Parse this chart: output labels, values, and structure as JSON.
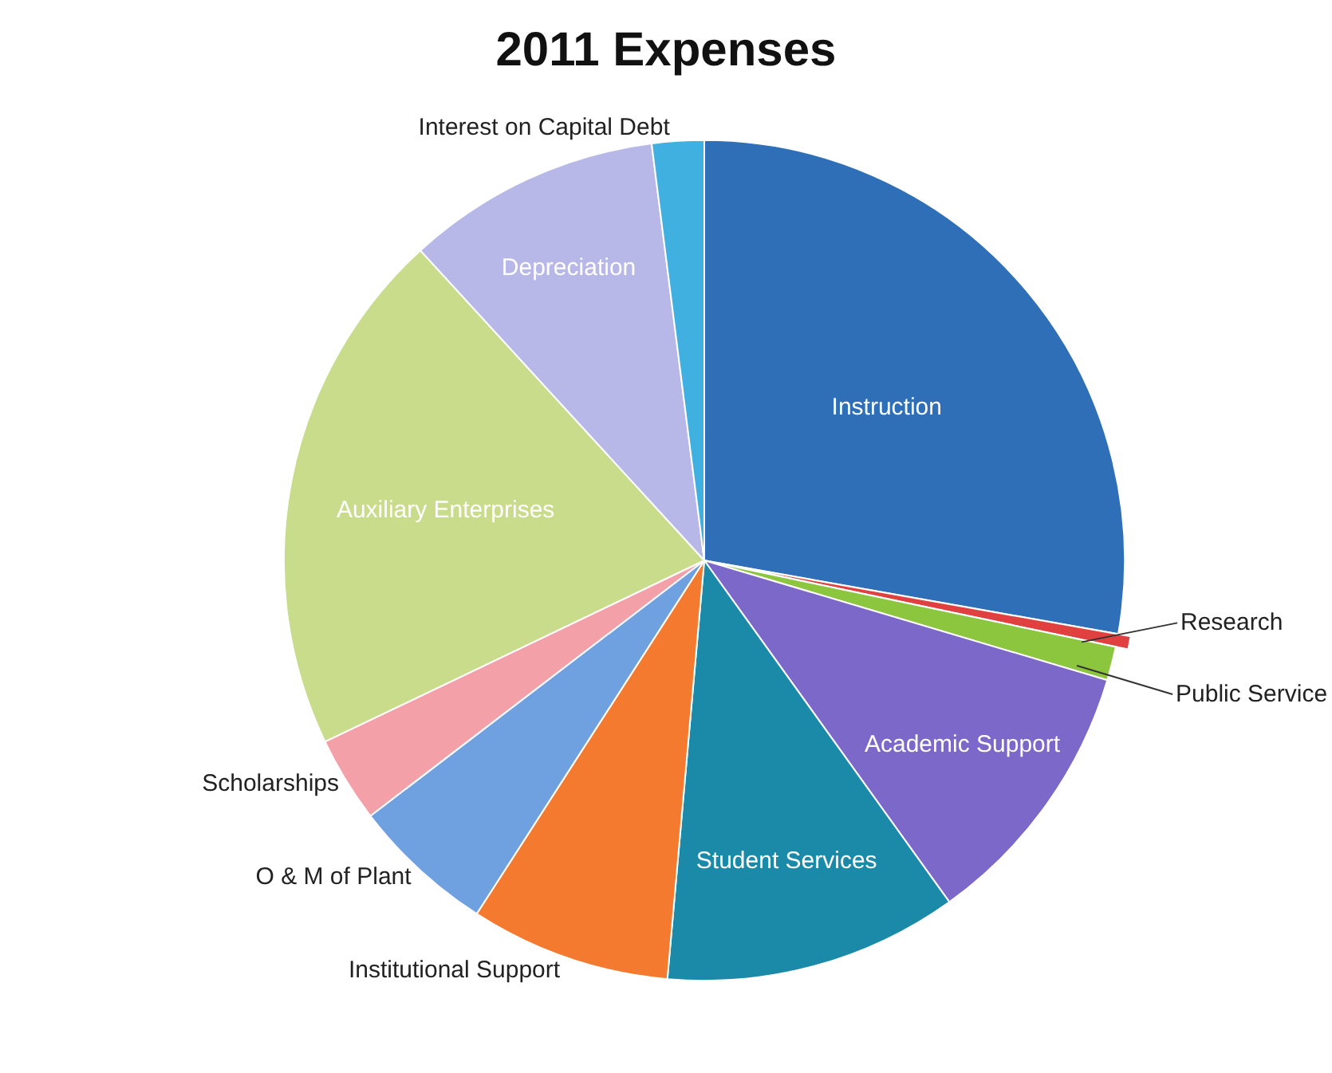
{
  "chart_data": {
    "type": "pie",
    "title": "2011 Expenses",
    "categories": [
      "Instruction",
      "Research",
      "Public Service",
      "Academic Support",
      "Student Services",
      "Institutional Support",
      "O & M of Plant",
      "Scholarships",
      "Auxiliary Enterprises",
      "Depreciation",
      "Interest on Capital Debt"
    ],
    "values": [
      27.8,
      0.5,
      1.3,
      10.5,
      11.3,
      7.7,
      5.5,
      3.3,
      20.3,
      9.8,
      2.0
    ],
    "colors": [
      "#2f6fb8",
      "#e04040",
      "#8cc63f",
      "#7b68c8",
      "#1a8aa8",
      "#f47a30",
      "#6fa0e0",
      "#f4a0a8",
      "#c8dc8c",
      "#b8b8e8",
      "#40b0e0"
    ],
    "legend": false
  }
}
